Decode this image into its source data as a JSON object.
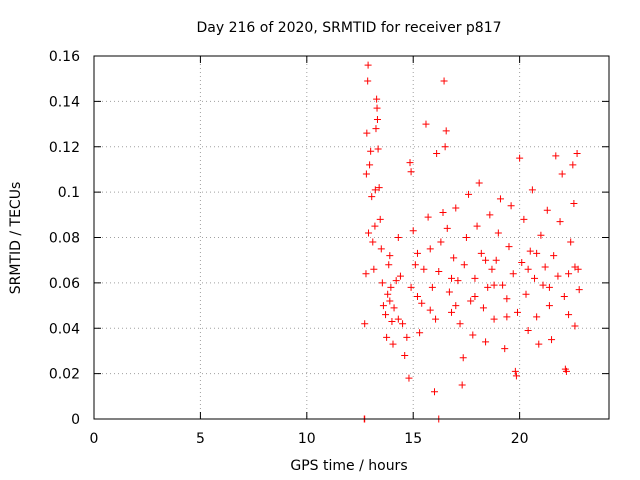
{
  "chart_data": {
    "type": "scatter",
    "title": "Day 216 of 2020, SRMTID for receiver p817",
    "xlabel": "GPS time / hours",
    "ylabel": "SRMTID / TECUs",
    "xlim": [
      0,
      24.2
    ],
    "ylim": [
      0,
      0.16
    ],
    "xticks": [
      0,
      5,
      10,
      15,
      20
    ],
    "xtick_labels": [
      "0",
      "5",
      "10",
      "15",
      "20"
    ],
    "yticks": [
      0,
      0.02,
      0.04,
      0.06,
      0.08,
      0.1,
      0.12,
      0.14,
      0.16
    ],
    "ytick_labels": [
      "0",
      "0.02",
      "0.04",
      "0.06",
      "0.08",
      "0.1",
      "0.12",
      "0.14",
      "0.16"
    ],
    "grid": true,
    "marker": "+",
    "color": "#ff0000",
    "series": [
      {
        "name": "SRMTID p817",
        "points": [
          [
            12.7,
            0.0
          ],
          [
            12.72,
            0.0
          ],
          [
            16.2,
            0.0
          ],
          [
            12.72,
            0.042
          ],
          [
            12.78,
            0.064
          ],
          [
            12.8,
            0.108
          ],
          [
            12.82,
            0.126
          ],
          [
            12.86,
            0.149
          ],
          [
            12.88,
            0.156
          ],
          [
            12.9,
            0.082
          ],
          [
            12.95,
            0.112
          ],
          [
            13.0,
            0.118
          ],
          [
            13.05,
            0.098
          ],
          [
            13.1,
            0.078
          ],
          [
            13.15,
            0.066
          ],
          [
            13.2,
            0.085
          ],
          [
            13.22,
            0.101
          ],
          [
            13.25,
            0.128
          ],
          [
            13.28,
            0.141
          ],
          [
            13.3,
            0.137
          ],
          [
            13.32,
            0.132
          ],
          [
            13.35,
            0.119
          ],
          [
            13.4,
            0.102
          ],
          [
            13.45,
            0.088
          ],
          [
            13.5,
            0.075
          ],
          [
            13.55,
            0.06
          ],
          [
            13.6,
            0.05
          ],
          [
            13.7,
            0.046
          ],
          [
            13.75,
            0.036
          ],
          [
            13.8,
            0.055
          ],
          [
            13.85,
            0.068
          ],
          [
            13.9,
            0.072
          ],
          [
            13.95,
            0.058
          ],
          [
            14.0,
            0.043
          ],
          [
            14.05,
            0.033
          ],
          [
            14.1,
            0.049
          ],
          [
            14.2,
            0.061
          ],
          [
            14.3,
            0.08
          ],
          [
            14.4,
            0.063
          ],
          [
            14.5,
            0.042
          ],
          [
            14.6,
            0.028
          ],
          [
            14.7,
            0.036
          ],
          [
            14.8,
            0.018
          ],
          [
            14.85,
            0.113
          ],
          [
            14.9,
            0.109
          ],
          [
            15.0,
            0.083
          ],
          [
            15.1,
            0.068
          ],
          [
            15.2,
            0.054
          ],
          [
            15.3,
            0.038
          ],
          [
            15.4,
            0.051
          ],
          [
            15.5,
            0.066
          ],
          [
            15.6,
            0.13
          ],
          [
            15.7,
            0.089
          ],
          [
            15.8,
            0.075
          ],
          [
            15.9,
            0.058
          ],
          [
            16.0,
            0.012
          ],
          [
            16.05,
            0.044
          ],
          [
            16.1,
            0.117
          ],
          [
            16.2,
            0.065
          ],
          [
            16.3,
            0.078
          ],
          [
            16.4,
            0.091
          ],
          [
            16.45,
            0.149
          ],
          [
            16.5,
            0.12
          ],
          [
            16.55,
            0.127
          ],
          [
            16.6,
            0.084
          ],
          [
            16.7,
            0.056
          ],
          [
            16.8,
            0.047
          ],
          [
            16.9,
            0.071
          ],
          [
            17.0,
            0.093
          ],
          [
            17.1,
            0.061
          ],
          [
            17.2,
            0.042
          ],
          [
            17.3,
            0.015
          ],
          [
            17.35,
            0.027
          ],
          [
            17.4,
            0.068
          ],
          [
            17.5,
            0.08
          ],
          [
            17.6,
            0.099
          ],
          [
            17.7,
            0.052
          ],
          [
            17.8,
            0.037
          ],
          [
            17.9,
            0.062
          ],
          [
            18.0,
            0.085
          ],
          [
            18.1,
            0.104
          ],
          [
            18.2,
            0.073
          ],
          [
            18.3,
            0.049
          ],
          [
            18.4,
            0.034
          ],
          [
            18.5,
            0.058
          ],
          [
            18.6,
            0.09
          ],
          [
            18.7,
            0.066
          ],
          [
            18.8,
            0.044
          ],
          [
            18.9,
            0.07
          ],
          [
            19.0,
            0.082
          ],
          [
            19.1,
            0.097
          ],
          [
            19.2,
            0.059
          ],
          [
            19.3,
            0.031
          ],
          [
            19.4,
            0.053
          ],
          [
            19.5,
            0.076
          ],
          [
            19.6,
            0.094
          ],
          [
            19.7,
            0.064
          ],
          [
            19.8,
            0.021
          ],
          [
            19.85,
            0.019
          ],
          [
            19.9,
            0.047
          ],
          [
            20.0,
            0.115
          ],
          [
            20.1,
            0.069
          ],
          [
            20.2,
            0.088
          ],
          [
            20.3,
            0.055
          ],
          [
            20.4,
            0.039
          ],
          [
            20.5,
            0.074
          ],
          [
            20.6,
            0.101
          ],
          [
            20.7,
            0.062
          ],
          [
            20.8,
            0.045
          ],
          [
            20.9,
            0.033
          ],
          [
            21.0,
            0.081
          ],
          [
            21.1,
            0.059
          ],
          [
            21.2,
            0.067
          ],
          [
            21.3,
            0.092
          ],
          [
            21.4,
            0.05
          ],
          [
            21.5,
            0.035
          ],
          [
            21.6,
            0.072
          ],
          [
            21.7,
            0.116
          ],
          [
            21.8,
            0.063
          ],
          [
            21.9,
            0.087
          ],
          [
            22.0,
            0.108
          ],
          [
            22.1,
            0.054
          ],
          [
            22.15,
            0.022
          ],
          [
            22.2,
            0.021
          ],
          [
            22.3,
            0.064
          ],
          [
            22.4,
            0.078
          ],
          [
            22.5,
            0.112
          ],
          [
            22.55,
            0.095
          ],
          [
            22.6,
            0.041
          ],
          [
            22.7,
            0.117
          ],
          [
            22.75,
            0.066
          ],
          [
            22.8,
            0.057
          ],
          [
            14.3,
            0.044
          ],
          [
            14.9,
            0.058
          ],
          [
            15.8,
            0.048
          ],
          [
            16.8,
            0.062
          ],
          [
            17.9,
            0.054
          ],
          [
            18.4,
            0.07
          ],
          [
            19.4,
            0.045
          ],
          [
            20.4,
            0.066
          ],
          [
            21.4,
            0.058
          ],
          [
            22.3,
            0.046
          ],
          [
            13.9,
            0.052
          ],
          [
            15.2,
            0.073
          ],
          [
            17.0,
            0.05
          ],
          [
            18.8,
            0.059
          ],
          [
            20.8,
            0.073
          ],
          [
            22.6,
            0.067
          ]
        ]
      }
    ]
  }
}
